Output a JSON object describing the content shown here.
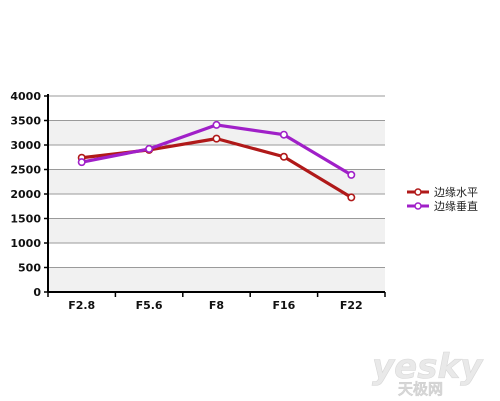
{
  "chart_data": {
    "type": "line",
    "categories": [
      "F2.8",
      "F5.6",
      "F8",
      "F16",
      "F22"
    ],
    "series": [
      {
        "name": "边缘水平",
        "color": "#b01919",
        "values": [
          2740,
          2900,
          3130,
          2760,
          1930
        ]
      },
      {
        "name": "边缘垂直",
        "color": "#a020c8",
        "values": [
          2650,
          2920,
          3410,
          3210,
          2390
        ]
      }
    ],
    "ylim": [
      0,
      4000
    ],
    "yticks": [
      "0",
      "500",
      "1000",
      "1500",
      "2000",
      "2500",
      "3000",
      "3500",
      "4000"
    ],
    "grid": true,
    "legend": "right"
  },
  "watermark": {
    "logo_text": "yesky",
    "sub_text": "天极网"
  }
}
